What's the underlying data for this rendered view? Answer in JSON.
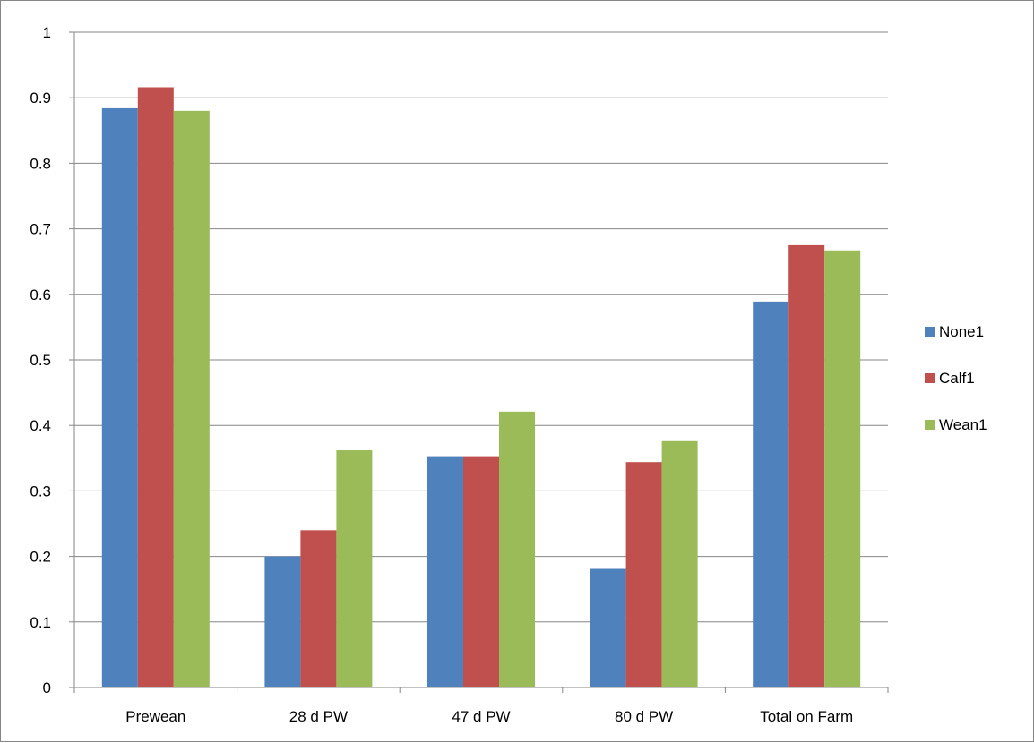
{
  "chart_data": {
    "type": "bar",
    "title": "",
    "xlabel": "",
    "ylabel": "",
    "categories": [
      "Prewean",
      "28 d PW",
      "47 d PW",
      "80 d PW",
      "Total on Farm"
    ],
    "series": [
      {
        "name": "None1",
        "color": "#4F81BD",
        "values": [
          0.884,
          0.2,
          0.353,
          0.181,
          0.589
        ]
      },
      {
        "name": "Calf1",
        "color": "#C0504D",
        "values": [
          0.916,
          0.24,
          0.353,
          0.344,
          0.675
        ]
      },
      {
        "name": "Wean1",
        "color": "#9BBB59",
        "values": [
          0.88,
          0.362,
          0.421,
          0.376,
          0.667
        ]
      }
    ],
    "ylim": [
      0,
      1
    ],
    "yticks": [
      "0",
      "0.1",
      "0.2",
      "0.3",
      "0.4",
      "0.5",
      "0.6",
      "0.7",
      "0.8",
      "0.9",
      "1"
    ],
    "grid": true,
    "legend_position": "right"
  }
}
